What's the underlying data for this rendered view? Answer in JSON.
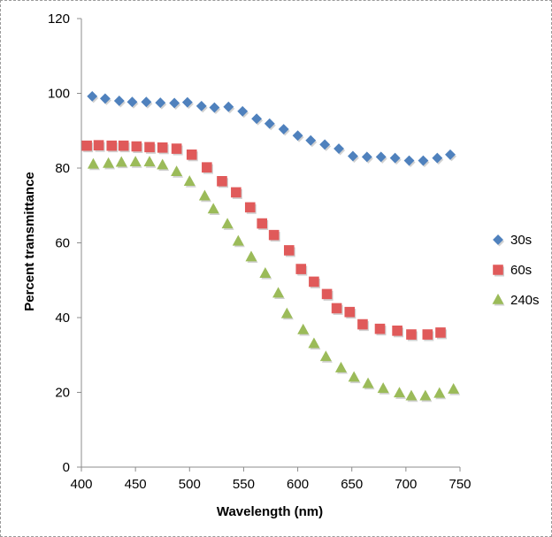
{
  "chart_data": {
    "type": "scatter",
    "title": "",
    "xlabel": "Wavelength (nm)",
    "ylabel": "Percent transmittance",
    "xlim": [
      400,
      750
    ],
    "ylim": [
      0,
      120
    ],
    "xticks": [
      400,
      450,
      500,
      550,
      600,
      650,
      700,
      750
    ],
    "yticks": [
      0,
      20,
      40,
      60,
      80,
      100,
      120
    ],
    "grid": false,
    "legend_position": "right",
    "series": [
      {
        "name": "30s",
        "marker": "diamond",
        "color": "#4f81bd",
        "x": [
          410,
          422,
          435,
          447,
          460,
          473,
          486,
          498,
          511,
          523,
          536,
          549,
          562,
          574,
          587,
          600,
          612,
          625,
          638,
          651,
          664,
          677,
          690,
          703,
          716,
          729,
          741
        ],
        "y": [
          99.2,
          98.6,
          98.0,
          97.7,
          97.7,
          97.5,
          97.4,
          97.6,
          96.6,
          96.2,
          96.4,
          95.2,
          93.2,
          91.9,
          90.4,
          88.7,
          87.4,
          86.3,
          85.2,
          83.2,
          83.0,
          83.0,
          82.7,
          82.0,
          82.0,
          82.7,
          83.6
        ]
      },
      {
        "name": "60s",
        "marker": "square",
        "color": "#e05a5a",
        "x": [
          405,
          416,
          428,
          439,
          451,
          463,
          475,
          488,
          502,
          516,
          530,
          543,
          556,
          567,
          578,
          592,
          603,
          615,
          627,
          636,
          648,
          660,
          676,
          692,
          705,
          720,
          732
        ],
        "y": [
          86.0,
          86.1,
          86.0,
          86.0,
          85.8,
          85.6,
          85.5,
          85.2,
          83.6,
          80.2,
          76.5,
          73.5,
          69.5,
          65.2,
          62.1,
          58.0,
          53.0,
          49.6,
          46.3,
          42.5,
          41.5,
          38.2,
          37.0,
          36.5,
          35.5,
          35.5,
          36.0
        ]
      },
      {
        "name": "240s",
        "marker": "triangle",
        "color": "#9bbb59",
        "x": [
          411,
          425,
          437,
          450,
          463,
          475,
          488,
          500,
          514,
          522,
          535,
          545,
          557,
          570,
          582,
          590,
          605,
          615,
          626,
          640,
          652,
          665,
          679,
          694,
          705,
          718,
          731,
          744
        ],
        "y": [
          81.0,
          81.2,
          81.5,
          81.6,
          81.6,
          80.8,
          79.0,
          76.4,
          72.5,
          69.0,
          65.0,
          60.4,
          56.2,
          51.8,
          46.5,
          41.0,
          36.7,
          33.0,
          29.5,
          26.5,
          24.0,
          22.3,
          21.0,
          19.8,
          19.0,
          19.0,
          19.7,
          20.8
        ]
      }
    ]
  }
}
